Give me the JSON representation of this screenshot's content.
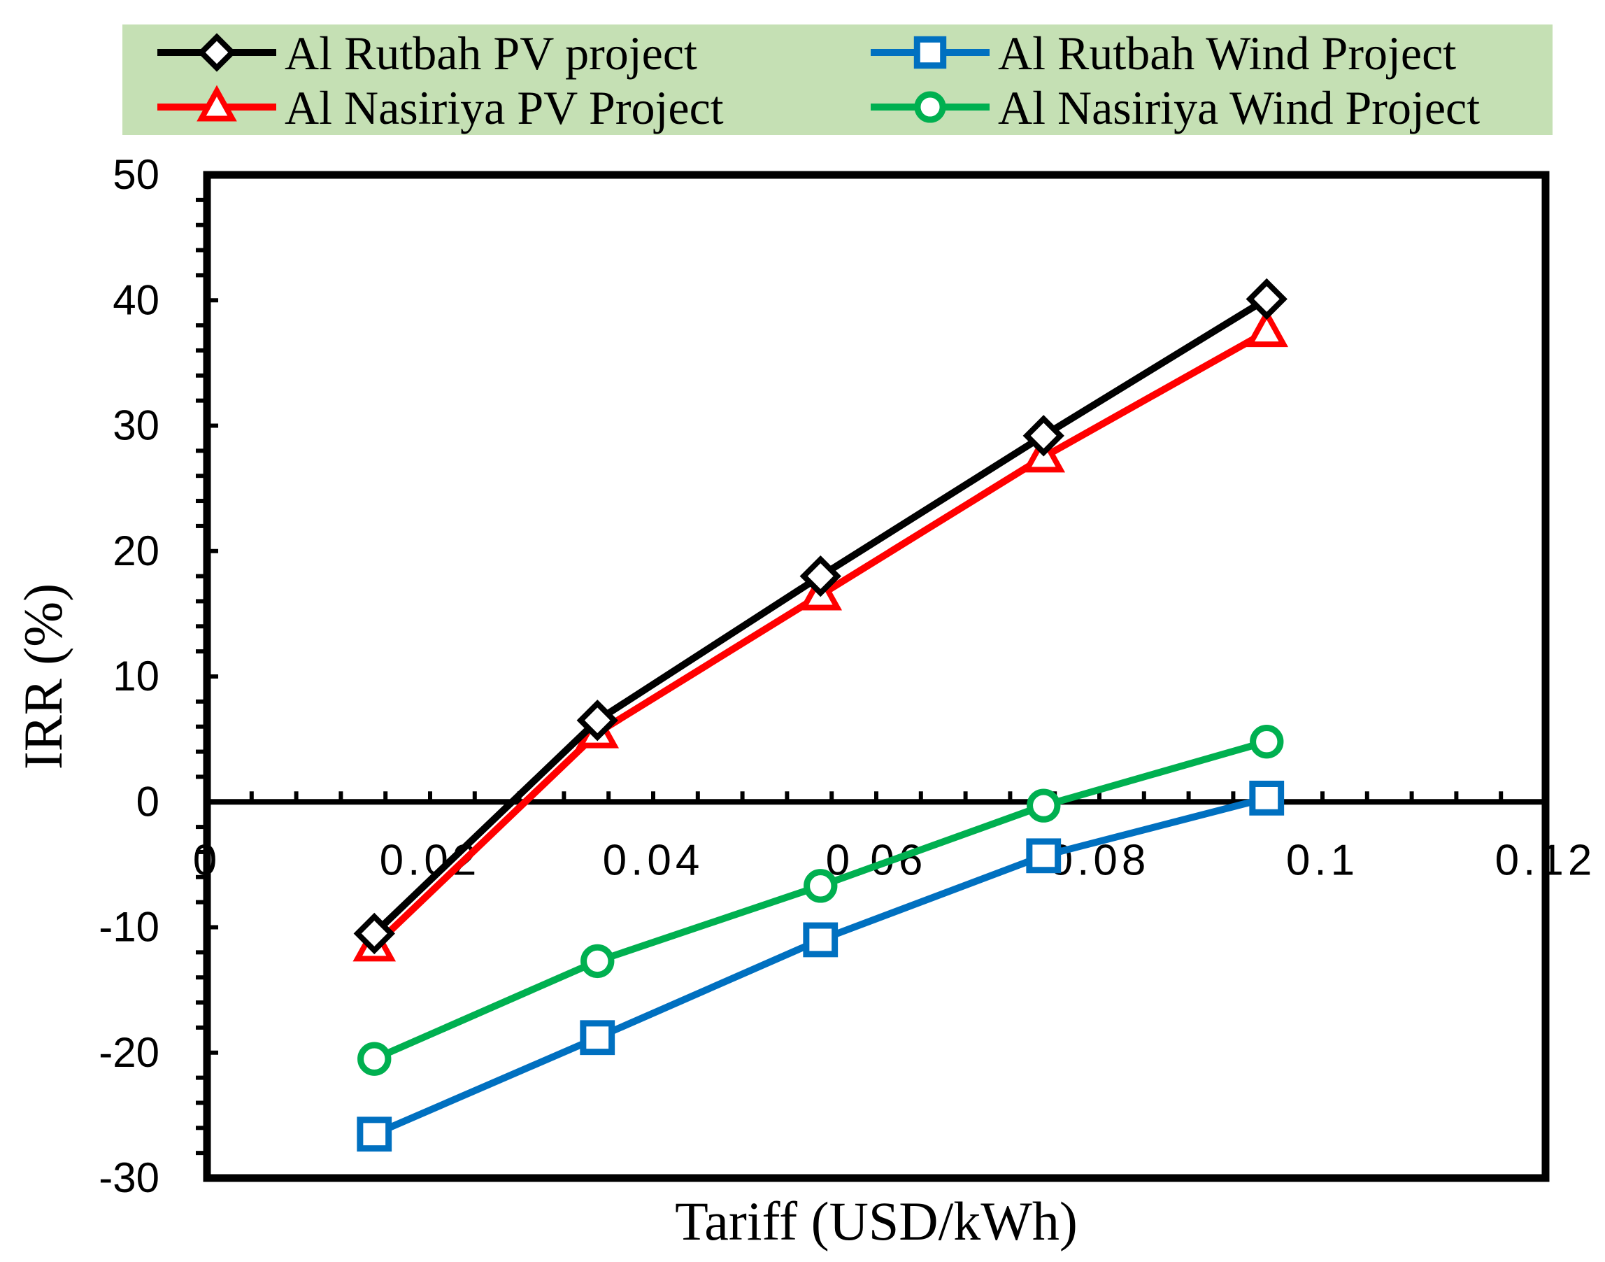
{
  "chart_data": {
    "type": "line",
    "xlabel": "Tariff (USD/kWh)",
    "ylabel": "IRR (%)",
    "xlim": [
      0,
      0.12
    ],
    "ylim": [
      -30,
      50
    ],
    "x_ticks": [
      0,
      0.02,
      0.04,
      0.06,
      0.08,
      0.1,
      0.12
    ],
    "x_tick_labels": [
      "0",
      "0.02",
      "0.04",
      "0.06",
      "0.08",
      "0.1",
      "0.12"
    ],
    "y_ticks": [
      -30,
      -20,
      -10,
      0,
      10,
      20,
      30,
      40,
      50
    ],
    "y_tick_labels": [
      "-30",
      "-20",
      "-10",
      "0",
      "10",
      "20",
      "30",
      "40",
      "50"
    ],
    "x": [
      0.015,
      0.035,
      0.055,
      0.075,
      0.095
    ],
    "series": [
      {
        "name": "Al Rutbah PV project",
        "color": "#000000",
        "marker": "diamond",
        "values": [
          -10.5,
          6.5,
          18,
          29.2,
          40.1
        ]
      },
      {
        "name": "Al Rutbah Wind Project",
        "color": "#0070C0",
        "marker": "square",
        "values": [
          -26.5,
          -18.8,
          -11,
          -4.3,
          0.3
        ]
      },
      {
        "name": "Al Nasiriya PV Project",
        "color": "#FF0000",
        "marker": "triangle",
        "values": [
          -11.5,
          5.5,
          16.5,
          27.5,
          37.5
        ]
      },
      {
        "name": "Al Nasiriya Wind Project",
        "color": "#00B050",
        "marker": "circle",
        "values": [
          -20.5,
          -12.7,
          -6.7,
          -0.3,
          4.8
        ]
      }
    ],
    "legend_position": "top",
    "legend_background": "#C5E0B4"
  }
}
